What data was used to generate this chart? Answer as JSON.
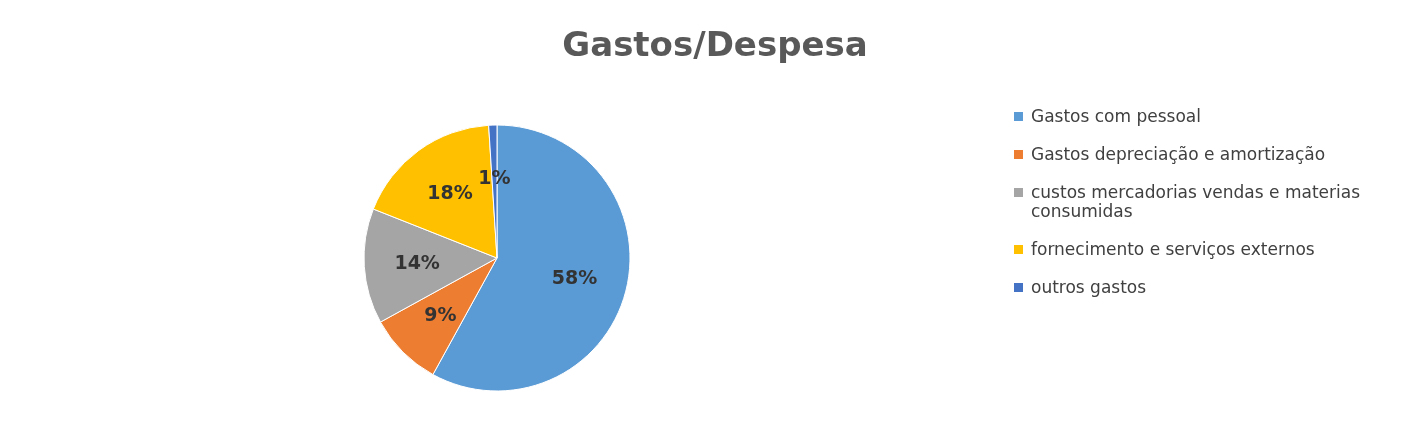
{
  "chart_data": {
    "type": "pie",
    "title": "Gastos/Despesa",
    "categories": [
      "Gastos com pessoal",
      "Gastos depreciação e amortização",
      "custos mercadorias vendas e materias consumidas",
      "fornecimento e serviços externos",
      "outros gastos"
    ],
    "values": [
      58,
      9,
      14,
      18,
      1
    ],
    "value_labels": [
      "58%",
      "9%",
      "14%",
      "18%",
      "1%"
    ],
    "colors": [
      "#5b9bd5",
      "#ed7d31",
      "#a5a5a5",
      "#ffc000",
      "#4472c4"
    ],
    "legend": "right"
  }
}
